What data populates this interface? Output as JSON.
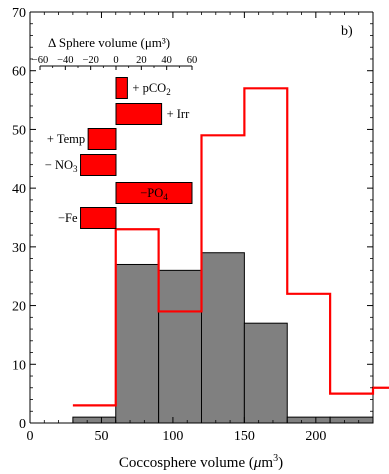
{
  "chart_data": {
    "type": "bar",
    "panel_label": "b)",
    "xlabel": "Coccosphere volume (μm³)",
    "ylabel": "",
    "xlim": [
      0,
      240
    ],
    "ylim": [
      0,
      70
    ],
    "x_ticks": [
      "0",
      "50",
      "100",
      "150",
      "200"
    ],
    "y_ticks": [
      "0",
      "10",
      "20",
      "30",
      "40",
      "50",
      "60",
      "70"
    ],
    "grid": false,
    "histogram": {
      "bin_edges": [
        30,
        60,
        90,
        120,
        150,
        180,
        210,
        240
      ],
      "values": [
        1,
        27,
        26,
        29,
        17,
        1,
        1
      ],
      "color": "#808080"
    },
    "step_line": {
      "bin_edges": [
        30,
        60,
        90,
        120,
        150,
        180,
        210,
        240
      ],
      "values": [
        3,
        33,
        19,
        49,
        57,
        22,
        5,
        6
      ],
      "color": "#ff0000"
    },
    "inset": {
      "title": "Δ Sphere volume (μm³)",
      "ticks": [
        -60,
        -40,
        -20,
        0,
        20,
        40,
        60
      ],
      "tick_labels": [
        "−60",
        "−40",
        "−20",
        "0",
        "20",
        "40",
        "60"
      ],
      "bar_color": "#ff0000",
      "bars": [
        {
          "label": "+ pCO₂",
          "value": 9
        },
        {
          "label": "+ Irr",
          "value": 36
        },
        {
          "label": "+ Temp",
          "value": -22
        },
        {
          "label": "− NO₃",
          "value": -28
        },
        {
          "label": "−PO₄",
          "value": 60
        },
        {
          "label": "−Fe",
          "value": -28
        }
      ]
    }
  }
}
